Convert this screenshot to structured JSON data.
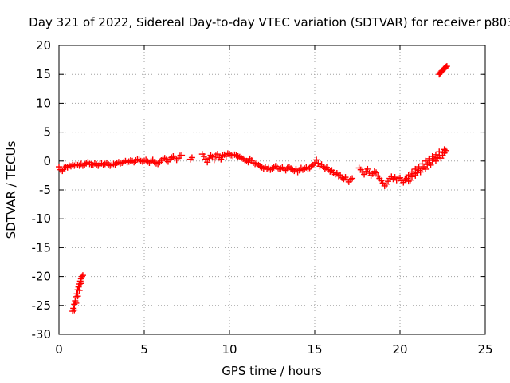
{
  "chart_data": {
    "type": "scatter",
    "title": "Day 321 of 2022, Sidereal Day-to-day VTEC variation (SDTVAR) for receiver p803",
    "xlabel": "GPS time / hours",
    "ylabel": "SDTVAR / TECUs",
    "xlim": [
      0,
      25
    ],
    "ylim": [
      -30,
      20
    ],
    "xticks": [
      0,
      5,
      10,
      15,
      20,
      25
    ],
    "yticks": [
      -30,
      -25,
      -20,
      -15,
      -10,
      -5,
      0,
      5,
      10,
      15,
      20
    ],
    "grid": true,
    "marker": "+",
    "color": "#ff0000",
    "series": [
      {
        "name": "SDTVAR",
        "points": [
          [
            0.0,
            -1.0
          ],
          [
            0.1,
            -1.5
          ],
          [
            0.2,
            -1.7
          ],
          [
            0.3,
            -1.2
          ],
          [
            0.4,
            -1.0
          ],
          [
            0.5,
            -1.1
          ],
          [
            0.6,
            -0.8
          ],
          [
            0.7,
            -0.9
          ],
          [
            0.8,
            -0.7
          ],
          [
            0.9,
            -0.8
          ],
          [
            1.0,
            -0.6
          ],
          [
            1.1,
            -0.7
          ],
          [
            1.2,
            -0.8
          ],
          [
            1.3,
            -0.5
          ],
          [
            1.4,
            -0.8
          ],
          [
            1.5,
            -0.6
          ],
          [
            1.6,
            -0.4
          ],
          [
            1.7,
            -0.2
          ],
          [
            1.8,
            -0.5
          ],
          [
            1.9,
            -0.6
          ],
          [
            2.0,
            -0.7
          ],
          [
            2.1,
            -0.4
          ],
          [
            2.2,
            -0.6
          ],
          [
            2.3,
            -0.8
          ],
          [
            2.4,
            -0.5
          ],
          [
            2.5,
            -0.4
          ],
          [
            2.6,
            -0.7
          ],
          [
            2.7,
            -0.5
          ],
          [
            2.8,
            -0.3
          ],
          [
            2.9,
            -0.6
          ],
          [
            3.0,
            -0.8
          ],
          [
            3.1,
            -0.7
          ],
          [
            3.2,
            -0.5
          ],
          [
            3.3,
            -0.6
          ],
          [
            3.4,
            -0.3
          ],
          [
            3.5,
            -0.2
          ],
          [
            3.6,
            -0.4
          ],
          [
            3.7,
            -0.3
          ],
          [
            3.8,
            -0.2
          ],
          [
            3.9,
            0.0
          ],
          [
            4.0,
            -0.2
          ],
          [
            4.1,
            -0.1
          ],
          [
            4.2,
            0.1
          ],
          [
            4.3,
            0.0
          ],
          [
            4.4,
            -0.2
          ],
          [
            4.5,
            0.1
          ],
          [
            4.6,
            0.3
          ],
          [
            4.7,
            0.2
          ],
          [
            4.8,
            0.0
          ],
          [
            4.9,
            -0.1
          ],
          [
            5.0,
            0.0
          ],
          [
            5.1,
            0.2
          ],
          [
            5.2,
            -0.1
          ],
          [
            5.3,
            -0.3
          ],
          [
            5.4,
            0.0
          ],
          [
            5.5,
            0.2
          ],
          [
            5.6,
            -0.2
          ],
          [
            5.7,
            -0.4
          ],
          [
            5.8,
            -0.5
          ],
          [
            5.9,
            -0.2
          ],
          [
            6.0,
            0.1
          ],
          [
            6.1,
            0.4
          ],
          [
            6.2,
            0.5
          ],
          [
            6.3,
            0.2
          ],
          [
            6.4,
            -0.1
          ],
          [
            6.5,
            0.3
          ],
          [
            6.6,
            0.6
          ],
          [
            6.7,
            0.8
          ],
          [
            6.8,
            0.5
          ],
          [
            6.9,
            0.2
          ],
          [
            7.0,
            0.5
          ],
          [
            7.1,
            0.9
          ],
          [
            7.2,
            1.0
          ],
          [
            7.7,
            0.3
          ],
          [
            7.8,
            0.6
          ],
          [
            8.4,
            1.2
          ],
          [
            8.5,
            0.8
          ],
          [
            8.6,
            0.3
          ],
          [
            8.7,
            -0.2
          ],
          [
            8.8,
            0.5
          ],
          [
            8.9,
            1.0
          ],
          [
            9.0,
            0.7
          ],
          [
            9.1,
            0.2
          ],
          [
            9.2,
            0.9
          ],
          [
            9.3,
            1.2
          ],
          [
            9.4,
            0.6
          ],
          [
            9.5,
            0.3
          ],
          [
            9.6,
            1.0
          ],
          [
            9.7,
            1.1
          ],
          [
            9.8,
            0.8
          ],
          [
            9.9,
            1.3
          ],
          [
            10.0,
            1.2
          ],
          [
            10.1,
            1.0
          ],
          [
            10.2,
            0.9
          ],
          [
            10.3,
            1.1
          ],
          [
            10.4,
            1.0
          ],
          [
            10.5,
            0.8
          ],
          [
            10.6,
            0.7
          ],
          [
            10.7,
            0.5
          ],
          [
            10.8,
            0.4
          ],
          [
            10.9,
            0.2
          ],
          [
            11.0,
            0.0
          ],
          [
            11.1,
            -0.2
          ],
          [
            11.2,
            0.4
          ],
          [
            11.3,
            0.1
          ],
          [
            11.4,
            -0.3
          ],
          [
            11.5,
            -0.5
          ],
          [
            11.6,
            -0.4
          ],
          [
            11.7,
            -0.7
          ],
          [
            11.8,
            -0.9
          ],
          [
            11.9,
            -1.1
          ],
          [
            12.0,
            -1.3
          ],
          [
            12.1,
            -1.0
          ],
          [
            12.2,
            -1.4
          ],
          [
            12.3,
            -1.2
          ],
          [
            12.4,
            -1.5
          ],
          [
            12.5,
            -1.3
          ],
          [
            12.6,
            -1.1
          ],
          [
            12.7,
            -0.9
          ],
          [
            12.8,
            -1.2
          ],
          [
            12.9,
            -1.4
          ],
          [
            13.0,
            -1.3
          ],
          [
            13.1,
            -1.1
          ],
          [
            13.2,
            -1.4
          ],
          [
            13.3,
            -1.6
          ],
          [
            13.4,
            -1.2
          ],
          [
            13.5,
            -1.0
          ],
          [
            13.6,
            -1.3
          ],
          [
            13.7,
            -1.5
          ],
          [
            13.8,
            -1.7
          ],
          [
            13.9,
            -1.4
          ],
          [
            14.0,
            -1.9
          ],
          [
            14.1,
            -1.6
          ],
          [
            14.2,
            -1.2
          ],
          [
            14.3,
            -1.5
          ],
          [
            14.4,
            -1.3
          ],
          [
            14.5,
            -1.1
          ],
          [
            14.6,
            -1.4
          ],
          [
            14.7,
            -1.2
          ],
          [
            14.8,
            -0.9
          ],
          [
            14.9,
            -0.7
          ],
          [
            15.0,
            -0.3
          ],
          [
            15.1,
            0.2
          ],
          [
            15.2,
            -0.4
          ],
          [
            15.3,
            -0.9
          ],
          [
            15.4,
            -0.6
          ],
          [
            15.5,
            -1.0
          ],
          [
            15.6,
            -1.3
          ],
          [
            15.7,
            -1.1
          ],
          [
            15.8,
            -1.5
          ],
          [
            15.9,
            -1.8
          ],
          [
            16.0,
            -1.6
          ],
          [
            16.1,
            -2.0
          ],
          [
            16.2,
            -2.3
          ],
          [
            16.3,
            -2.1
          ],
          [
            16.4,
            -2.6
          ],
          [
            16.5,
            -2.4
          ],
          [
            16.6,
            -2.9
          ],
          [
            16.7,
            -3.1
          ],
          [
            16.8,
            -2.8
          ],
          [
            16.9,
            -3.3
          ],
          [
            17.0,
            -3.6
          ],
          [
            17.1,
            -3.2
          ],
          [
            17.2,
            -3.0
          ],
          [
            17.6,
            -1.2
          ],
          [
            17.7,
            -1.5
          ],
          [
            17.8,
            -1.9
          ],
          [
            17.9,
            -2.3
          ],
          [
            18.0,
            -1.8
          ],
          [
            18.1,
            -1.4
          ],
          [
            18.2,
            -2.1
          ],
          [
            18.3,
            -2.5
          ],
          [
            18.4,
            -2.2
          ],
          [
            18.5,
            -1.8
          ],
          [
            18.6,
            -2.0
          ],
          [
            18.7,
            -2.6
          ],
          [
            18.8,
            -3.0
          ],
          [
            18.9,
            -3.4
          ],
          [
            19.0,
            -3.8
          ],
          [
            19.1,
            -4.3
          ],
          [
            19.2,
            -4.0
          ],
          [
            19.3,
            -3.5
          ],
          [
            19.4,
            -3.0
          ],
          [
            19.5,
            -2.7
          ],
          [
            19.6,
            -3.1
          ],
          [
            19.7,
            -2.8
          ],
          [
            19.8,
            -3.3
          ],
          [
            19.9,
            -3.0
          ],
          [
            20.0,
            -2.9
          ],
          [
            20.1,
            -3.4
          ],
          [
            20.2,
            -3.7
          ],
          [
            20.3,
            -3.2
          ],
          [
            20.4,
            -3.0
          ],
          [
            20.5,
            -3.5
          ],
          [
            20.6,
            -3.3
          ],
          [
            20.7,
            -2.7
          ],
          [
            20.8,
            -2.2
          ],
          [
            20.9,
            -2.5
          ],
          [
            21.0,
            -2.0
          ],
          [
            21.1,
            -1.6
          ],
          [
            21.2,
            -1.9
          ],
          [
            21.3,
            -1.3
          ],
          [
            21.4,
            -1.0
          ],
          [
            21.5,
            -1.4
          ],
          [
            21.6,
            -0.6
          ],
          [
            21.7,
            -0.3
          ],
          [
            21.8,
            -0.7
          ],
          [
            21.9,
            0.1
          ],
          [
            22.0,
            0.4
          ],
          [
            22.1,
            0.0
          ],
          [
            22.2,
            0.6
          ],
          [
            22.3,
            0.9
          ],
          [
            22.4,
            0.5
          ],
          [
            22.5,
            1.0
          ],
          [
            22.6,
            1.4
          ],
          [
            22.7,
            1.8
          ],
          [
            22.6,
            2.0
          ],
          [
            22.5,
            1.5
          ],
          [
            22.3,
            1.6
          ],
          [
            22.1,
            1.1
          ],
          [
            21.9,
            0.8
          ],
          [
            21.7,
            0.4
          ],
          [
            21.5,
            0.0
          ],
          [
            21.3,
            -0.5
          ],
          [
            21.1,
            -1.0
          ],
          [
            20.9,
            -1.4
          ],
          [
            20.7,
            -1.9
          ],
          [
            20.5,
            -2.4
          ],
          [
            0.8,
            -26.0
          ],
          [
            0.85,
            -25.5
          ],
          [
            0.9,
            -24.8
          ],
          [
            0.95,
            -24.2
          ],
          [
            1.0,
            -23.5
          ],
          [
            1.05,
            -23.0
          ],
          [
            1.1,
            -22.3
          ],
          [
            1.15,
            -21.8
          ],
          [
            1.2,
            -21.3
          ],
          [
            1.25,
            -20.8
          ],
          [
            1.3,
            -20.4
          ],
          [
            1.35,
            -20.0
          ],
          [
            1.4,
            -19.8
          ],
          [
            0.9,
            -25.8
          ],
          [
            1.0,
            -24.6
          ],
          [
            1.1,
            -23.4
          ],
          [
            1.2,
            -22.4
          ],
          [
            1.3,
            -21.2
          ],
          [
            22.3,
            15.0
          ],
          [
            22.35,
            15.2
          ],
          [
            22.4,
            15.4
          ],
          [
            22.45,
            15.6
          ],
          [
            22.5,
            15.7
          ],
          [
            22.55,
            15.9
          ],
          [
            22.6,
            16.0
          ],
          [
            22.65,
            16.1
          ],
          [
            22.7,
            16.3
          ],
          [
            22.75,
            16.4
          ]
        ]
      }
    ]
  }
}
